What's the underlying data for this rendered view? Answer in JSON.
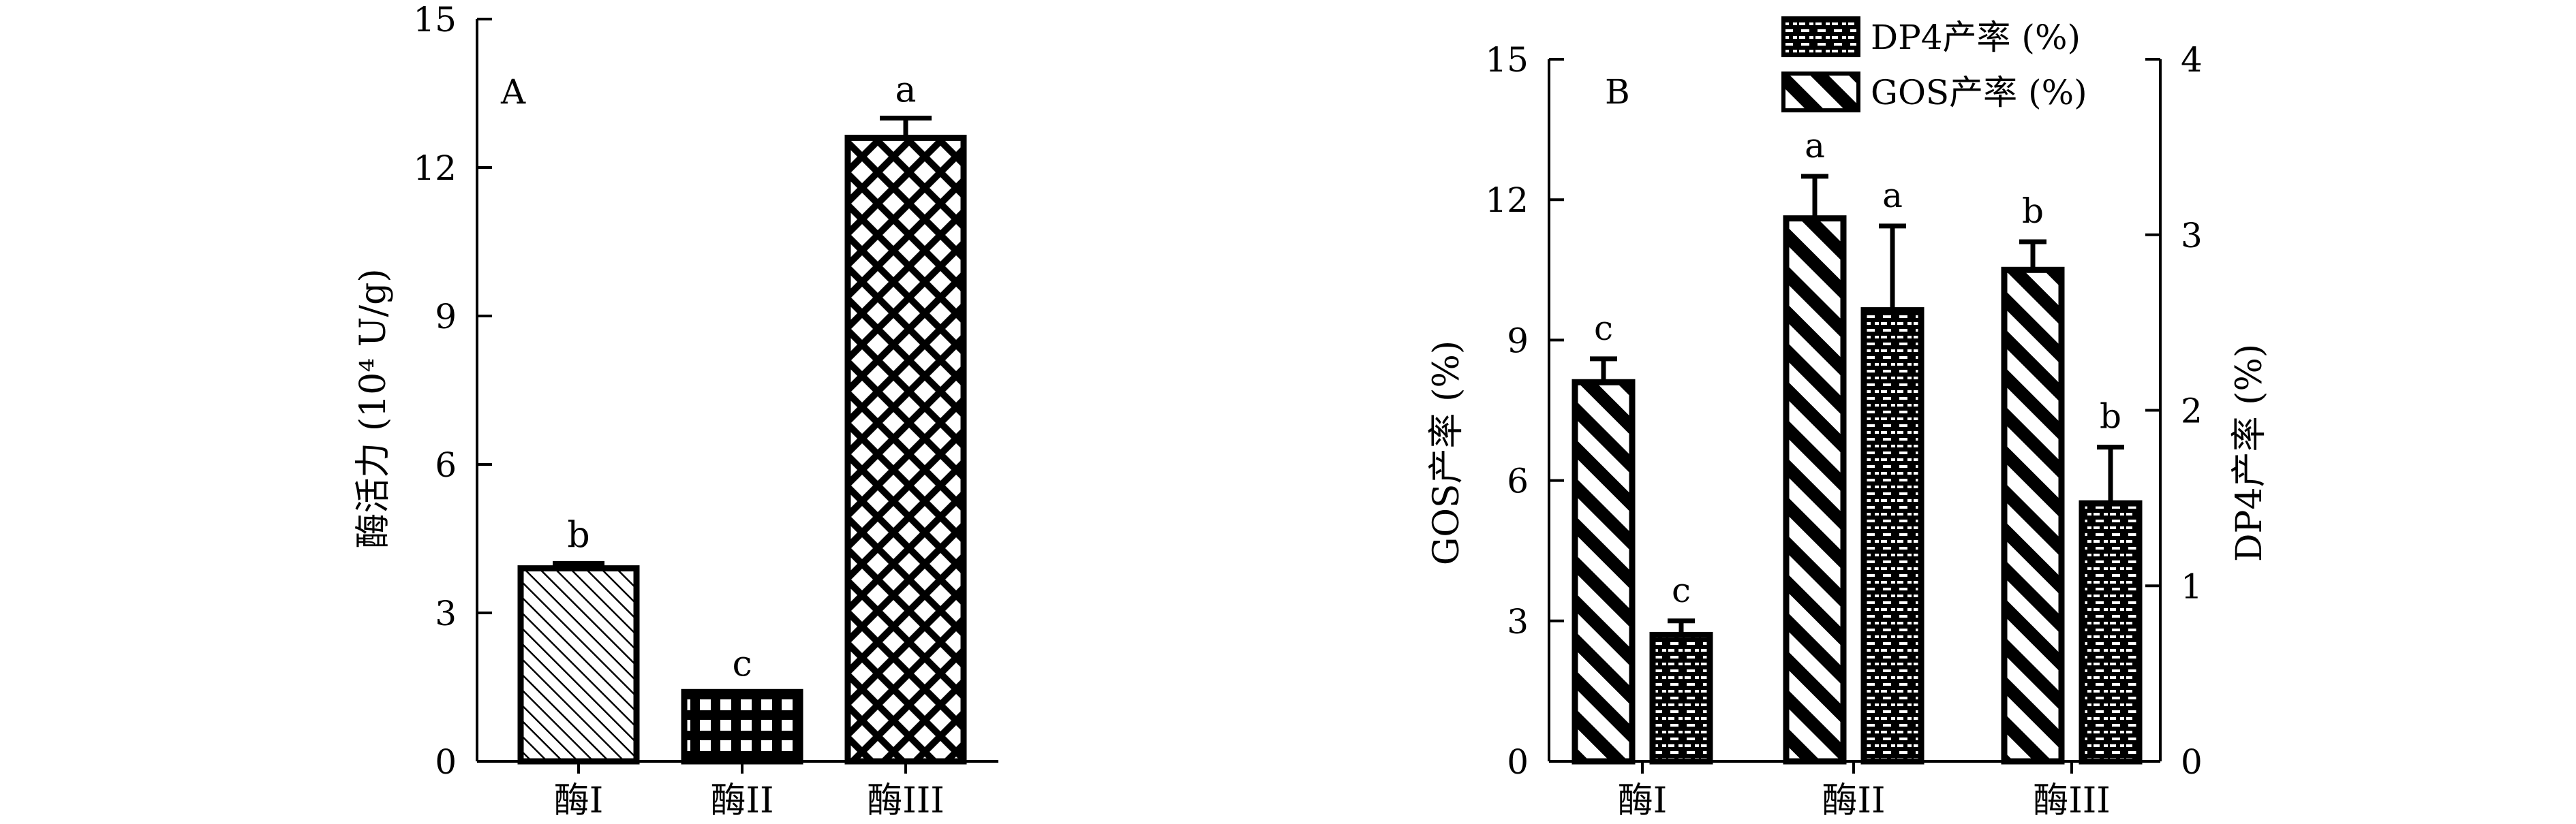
{
  "chart_data": [
    {
      "type": "bar",
      "panel_label": "A",
      "categories": [
        "酶I",
        "酶II",
        "酶III"
      ],
      "ylabel": "酶活力 (10⁴ U/g)",
      "ylim": [
        0,
        15
      ],
      "yticks": [
        "0",
        "3",
        "6",
        "9",
        "12",
        "15"
      ],
      "grid": false,
      "series": [
        {
          "values": [
            3.9,
            1.4,
            12.6
          ],
          "errors": [
            0.1,
            0,
            0.4
          ],
          "letters": [
            "b",
            "c",
            "a"
          ],
          "patterns": [
            "diagonal-hatch",
            "grid",
            "diamond-lattice"
          ]
        }
      ]
    },
    {
      "type": "bar",
      "panel_label": "B",
      "categories": [
        "酶I",
        "酶II",
        "酶III"
      ],
      "ylabel": "GOS产率 (%)",
      "ylabel_right": "DP4产率 (%)",
      "ylim": [
        0,
        15
      ],
      "ylim_right": [
        0,
        4
      ],
      "yticks": [
        "0",
        "3",
        "6",
        "9",
        "12",
        "15"
      ],
      "yticks_right": [
        "0",
        "1",
        "2",
        "3",
        "4"
      ],
      "legend_position": "top-right",
      "grid": false,
      "series": [
        {
          "name": "GOS产率 (%)",
          "axis": "left",
          "pattern": "bold-diagonal",
          "values": [
            8.1,
            11.6,
            10.5
          ],
          "errors": [
            0.5,
            0.9,
            0.6
          ],
          "letters": [
            "c",
            "a",
            "b"
          ]
        },
        {
          "name": "DP4产率 (%)",
          "axis": "right",
          "pattern": "brick",
          "values": [
            0.72,
            2.57,
            1.47
          ],
          "errors": [
            0.08,
            0.48,
            0.32
          ],
          "letters": [
            "c",
            "a",
            "b"
          ]
        }
      ]
    }
  ]
}
